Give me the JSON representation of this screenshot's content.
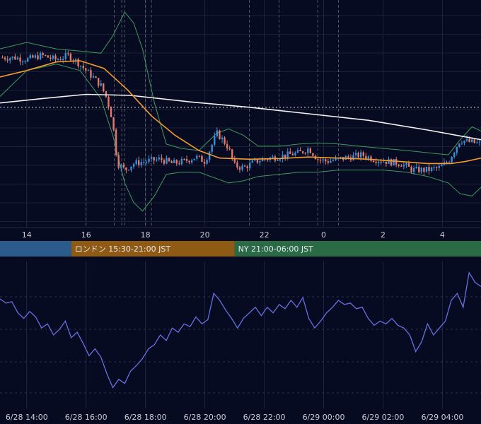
{
  "chart_data": [
    {
      "type": "candlestick",
      "name_hint": "price",
      "upper_axis_ticks": [
        "14",
        "16",
        "18",
        "20",
        "22",
        "0",
        "2",
        "4"
      ],
      "upper_axis_hours": [
        14,
        16,
        18,
        20,
        22,
        24,
        26,
        28
      ],
      "x_range_hours": [
        13.1,
        29.3
      ],
      "price_range": [
        0,
        100
      ],
      "close_series": [
        {
          "t": 13.1,
          "v": 76
        },
        {
          "t": 13.6,
          "v": 76
        },
        {
          "t": 14.0,
          "v": 75
        },
        {
          "t": 14.5,
          "v": 77
        },
        {
          "t": 15.0,
          "v": 75
        },
        {
          "t": 15.4,
          "v": 77
        },
        {
          "t": 15.7,
          "v": 74
        },
        {
          "t": 16.0,
          "v": 70
        },
        {
          "t": 16.3,
          "v": 66
        },
        {
          "t": 16.5,
          "v": 63
        },
        {
          "t": 16.7,
          "v": 57
        },
        {
          "t": 16.85,
          "v": 49
        },
        {
          "t": 16.95,
          "v": 40
        },
        {
          "t": 17.05,
          "v": 27
        },
        {
          "t": 17.15,
          "v": 26
        },
        {
          "t": 17.3,
          "v": 24
        },
        {
          "t": 17.6,
          "v": 27
        },
        {
          "t": 18.0,
          "v": 28
        },
        {
          "t": 18.5,
          "v": 29
        },
        {
          "t": 18.9,
          "v": 27
        },
        {
          "t": 19.3,
          "v": 28
        },
        {
          "t": 19.7,
          "v": 30
        },
        {
          "t": 20.0,
          "v": 28
        },
        {
          "t": 20.25,
          "v": 36
        },
        {
          "t": 20.4,
          "v": 41
        },
        {
          "t": 20.6,
          "v": 38
        },
        {
          "t": 20.8,
          "v": 34
        },
        {
          "t": 21.0,
          "v": 26
        },
        {
          "t": 21.3,
          "v": 25
        },
        {
          "t": 21.7,
          "v": 28
        },
        {
          "t": 22.0,
          "v": 29
        },
        {
          "t": 22.4,
          "v": 30
        },
        {
          "t": 22.8,
          "v": 31
        },
        {
          "t": 23.2,
          "v": 32
        },
        {
          "t": 23.5,
          "v": 34
        },
        {
          "t": 23.8,
          "v": 29
        },
        {
          "t": 24.1,
          "v": 28
        },
        {
          "t": 24.5,
          "v": 29
        },
        {
          "t": 24.9,
          "v": 30
        },
        {
          "t": 25.3,
          "v": 31
        },
        {
          "t": 25.7,
          "v": 29
        },
        {
          "t": 26.1,
          "v": 28
        },
        {
          "t": 26.6,
          "v": 27
        },
        {
          "t": 27.0,
          "v": 24
        },
        {
          "t": 27.5,
          "v": 24
        },
        {
          "t": 27.9,
          "v": 25
        },
        {
          "t": 28.2,
          "v": 28
        },
        {
          "t": 28.4,
          "v": 33
        },
        {
          "t": 28.6,
          "v": 38
        },
        {
          "t": 28.9,
          "v": 37
        },
        {
          "t": 29.3,
          "v": 36
        }
      ],
      "ma_white": [
        {
          "t": 13.1,
          "v": 55
        },
        {
          "t": 14.5,
          "v": 57
        },
        {
          "t": 16.0,
          "v": 59
        },
        {
          "t": 17.5,
          "v": 58.5
        },
        {
          "t": 19.5,
          "v": 55.5
        },
        {
          "t": 21.5,
          "v": 53
        },
        {
          "t": 23.5,
          "v": 50
        },
        {
          "t": 25.5,
          "v": 47
        },
        {
          "t": 27.5,
          "v": 42.5
        },
        {
          "t": 29.3,
          "v": 38
        }
      ],
      "ma_orange": [
        {
          "t": 13.1,
          "v": 67
        },
        {
          "t": 14.0,
          "v": 70
        },
        {
          "t": 15.0,
          "v": 74
        },
        {
          "t": 15.8,
          "v": 74.5
        },
        {
          "t": 16.6,
          "v": 71
        },
        {
          "t": 17.4,
          "v": 61
        },
        {
          "t": 18.2,
          "v": 49
        },
        {
          "t": 19.0,
          "v": 40
        },
        {
          "t": 19.8,
          "v": 33
        },
        {
          "t": 20.5,
          "v": 29.5
        },
        {
          "t": 21.5,
          "v": 29
        },
        {
          "t": 22.5,
          "v": 29.3
        },
        {
          "t": 23.5,
          "v": 30
        },
        {
          "t": 24.5,
          "v": 29.5
        },
        {
          "t": 25.5,
          "v": 29
        },
        {
          "t": 26.5,
          "v": 28
        },
        {
          "t": 27.5,
          "v": 27
        },
        {
          "t": 28.3,
          "v": 27
        },
        {
          "t": 28.8,
          "v": 28
        },
        {
          "t": 29.3,
          "v": 29.5
        }
      ],
      "bb_upper": [
        {
          "t": 13.1,
          "v": 80
        },
        {
          "t": 14.0,
          "v": 83
        },
        {
          "t": 15.0,
          "v": 80
        },
        {
          "t": 15.8,
          "v": 79
        },
        {
          "t": 16.5,
          "v": 78
        },
        {
          "t": 16.9,
          "v": 86
        },
        {
          "t": 17.3,
          "v": 97
        },
        {
          "t": 17.6,
          "v": 92
        },
        {
          "t": 17.9,
          "v": 80
        },
        {
          "t": 18.3,
          "v": 55
        },
        {
          "t": 18.7,
          "v": 36
        },
        {
          "t": 19.2,
          "v": 34
        },
        {
          "t": 19.8,
          "v": 33
        },
        {
          "t": 20.4,
          "v": 41
        },
        {
          "t": 20.8,
          "v": 43
        },
        {
          "t": 21.3,
          "v": 40
        },
        {
          "t": 21.8,
          "v": 35
        },
        {
          "t": 22.5,
          "v": 35
        },
        {
          "t": 23.2,
          "v": 36
        },
        {
          "t": 23.8,
          "v": 36.5
        },
        {
          "t": 24.5,
          "v": 36
        },
        {
          "t": 25.2,
          "v": 35
        },
        {
          "t": 26.0,
          "v": 34
        },
        {
          "t": 26.8,
          "v": 33
        },
        {
          "t": 27.5,
          "v": 32
        },
        {
          "t": 28.2,
          "v": 31
        },
        {
          "t": 28.6,
          "v": 38
        },
        {
          "t": 29.0,
          "v": 44
        },
        {
          "t": 29.3,
          "v": 42
        }
      ],
      "bb_lower": [
        {
          "t": 13.1,
          "v": 58
        },
        {
          "t": 14.0,
          "v": 70
        },
        {
          "t": 15.0,
          "v": 73
        },
        {
          "t": 15.8,
          "v": 70
        },
        {
          "t": 16.5,
          "v": 57
        },
        {
          "t": 16.9,
          "v": 40
        },
        {
          "t": 17.3,
          "v": 18
        },
        {
          "t": 17.6,
          "v": 9
        },
        {
          "t": 17.9,
          "v": 5
        },
        {
          "t": 18.3,
          "v": 12
        },
        {
          "t": 18.7,
          "v": 22
        },
        {
          "t": 19.2,
          "v": 23
        },
        {
          "t": 19.8,
          "v": 23
        },
        {
          "t": 20.4,
          "v": 20
        },
        {
          "t": 20.8,
          "v": 18
        },
        {
          "t": 21.3,
          "v": 19
        },
        {
          "t": 21.8,
          "v": 21
        },
        {
          "t": 22.5,
          "v": 22
        },
        {
          "t": 23.2,
          "v": 23
        },
        {
          "t": 23.8,
          "v": 23
        },
        {
          "t": 24.5,
          "v": 24
        },
        {
          "t": 25.2,
          "v": 24
        },
        {
          "t": 26.0,
          "v": 24
        },
        {
          "t": 26.8,
          "v": 23
        },
        {
          "t": 27.5,
          "v": 21
        },
        {
          "t": 28.2,
          "v": 18
        },
        {
          "t": 28.6,
          "v": 13
        },
        {
          "t": 29.0,
          "v": 12
        },
        {
          "t": 29.3,
          "v": 16
        }
      ],
      "dotted_reference_price": 53,
      "vertical_markers_hours": [
        16.0,
        16.95,
        17.2,
        17.3,
        18.0,
        18.2,
        21.5,
        22.5,
        23.8,
        24.5
      ],
      "bull_color": "#3a8fd8",
      "bear_color": "#e07a6a",
      "white_ma_color": "#f2f2f2",
      "orange_ma_color": "#f39a2e",
      "band_color": "#3d9a5c"
    },
    {
      "type": "sessions",
      "items": [
        {
          "label": "",
          "start_hour": 13.1,
          "end_hour": 15.5,
          "color": "#2a5b8c"
        },
        {
          "label": "ロンドン 15:30-21:00 JST",
          "start_hour": 15.5,
          "end_hour": 21.0,
          "color": "#8f5b14"
        },
        {
          "label": "NY 21:00-06:00 JST",
          "start_hour": 21.0,
          "end_hour": 29.3,
          "color": "#2a6b45"
        }
      ]
    },
    {
      "type": "line",
      "name_hint": "oscillator",
      "y_range": [
        0,
        100
      ],
      "color": "#6670e0",
      "values": [
        {
          "t": 13.1,
          "v": 76
        },
        {
          "t": 13.3,
          "v": 73
        },
        {
          "t": 13.5,
          "v": 74
        },
        {
          "t": 13.7,
          "v": 66
        },
        {
          "t": 13.9,
          "v": 62
        },
        {
          "t": 14.1,
          "v": 67
        },
        {
          "t": 14.3,
          "v": 63
        },
        {
          "t": 14.5,
          "v": 55
        },
        {
          "t": 14.7,
          "v": 58
        },
        {
          "t": 14.9,
          "v": 50
        },
        {
          "t": 15.1,
          "v": 54
        },
        {
          "t": 15.3,
          "v": 60
        },
        {
          "t": 15.5,
          "v": 48
        },
        {
          "t": 15.7,
          "v": 52
        },
        {
          "t": 15.9,
          "v": 44
        },
        {
          "t": 16.1,
          "v": 35
        },
        {
          "t": 16.3,
          "v": 40
        },
        {
          "t": 16.5,
          "v": 34
        },
        {
          "t": 16.7,
          "v": 22
        },
        {
          "t": 16.9,
          "v": 12
        },
        {
          "t": 17.1,
          "v": 18
        },
        {
          "t": 17.3,
          "v": 15
        },
        {
          "t": 17.5,
          "v": 24
        },
        {
          "t": 17.7,
          "v": 28
        },
        {
          "t": 17.9,
          "v": 33
        },
        {
          "t": 18.1,
          "v": 40
        },
        {
          "t": 18.3,
          "v": 43
        },
        {
          "t": 18.5,
          "v": 50
        },
        {
          "t": 18.7,
          "v": 46
        },
        {
          "t": 18.9,
          "v": 55
        },
        {
          "t": 19.1,
          "v": 52
        },
        {
          "t": 19.3,
          "v": 58
        },
        {
          "t": 19.5,
          "v": 56
        },
        {
          "t": 19.7,
          "v": 63
        },
        {
          "t": 19.9,
          "v": 58
        },
        {
          "t": 20.1,
          "v": 61
        },
        {
          "t": 20.3,
          "v": 80
        },
        {
          "t": 20.5,
          "v": 75
        },
        {
          "t": 20.7,
          "v": 68
        },
        {
          "t": 20.9,
          "v": 62
        },
        {
          "t": 21.1,
          "v": 55
        },
        {
          "t": 21.3,
          "v": 62
        },
        {
          "t": 21.5,
          "v": 66
        },
        {
          "t": 21.7,
          "v": 70
        },
        {
          "t": 21.9,
          "v": 64
        },
        {
          "t": 22.1,
          "v": 70
        },
        {
          "t": 22.3,
          "v": 66
        },
        {
          "t": 22.5,
          "v": 72
        },
        {
          "t": 22.7,
          "v": 69
        },
        {
          "t": 22.9,
          "v": 75
        },
        {
          "t": 23.1,
          "v": 70
        },
        {
          "t": 23.3,
          "v": 77
        },
        {
          "t": 23.5,
          "v": 62
        },
        {
          "t": 23.7,
          "v": 55
        },
        {
          "t": 23.9,
          "v": 60
        },
        {
          "t": 24.1,
          "v": 66
        },
        {
          "t": 24.3,
          "v": 70
        },
        {
          "t": 24.5,
          "v": 75
        },
        {
          "t": 24.7,
          "v": 72
        },
        {
          "t": 24.9,
          "v": 73
        },
        {
          "t": 25.1,
          "v": 69
        },
        {
          "t": 25.3,
          "v": 70
        },
        {
          "t": 25.5,
          "v": 62
        },
        {
          "t": 25.7,
          "v": 57
        },
        {
          "t": 25.9,
          "v": 60
        },
        {
          "t": 26.1,
          "v": 58
        },
        {
          "t": 26.3,
          "v": 62
        },
        {
          "t": 26.5,
          "v": 57
        },
        {
          "t": 26.7,
          "v": 55
        },
        {
          "t": 26.9,
          "v": 50
        },
        {
          "t": 27.1,
          "v": 38
        },
        {
          "t": 27.3,
          "v": 45
        },
        {
          "t": 27.5,
          "v": 58
        },
        {
          "t": 27.7,
          "v": 50
        },
        {
          "t": 27.9,
          "v": 55
        },
        {
          "t": 28.1,
          "v": 60
        },
        {
          "t": 28.3,
          "v": 75
        },
        {
          "t": 28.5,
          "v": 80
        },
        {
          "t": 28.7,
          "v": 70
        },
        {
          "t": 28.9,
          "v": 95
        },
        {
          "t": 29.1,
          "v": 88
        },
        {
          "t": 29.3,
          "v": 85
        }
      ],
      "bottom_axis_ticks": [
        "6/28 14:00",
        "6/28 16:00",
        "6/28 18:00",
        "6/28 20:00",
        "6/28 22:00",
        "6/29 00:00",
        "6/29 02:00",
        "6/29 04:00"
      ],
      "bottom_axis_hours": [
        14,
        16,
        18,
        20,
        22,
        24,
        26,
        28
      ]
    }
  ]
}
